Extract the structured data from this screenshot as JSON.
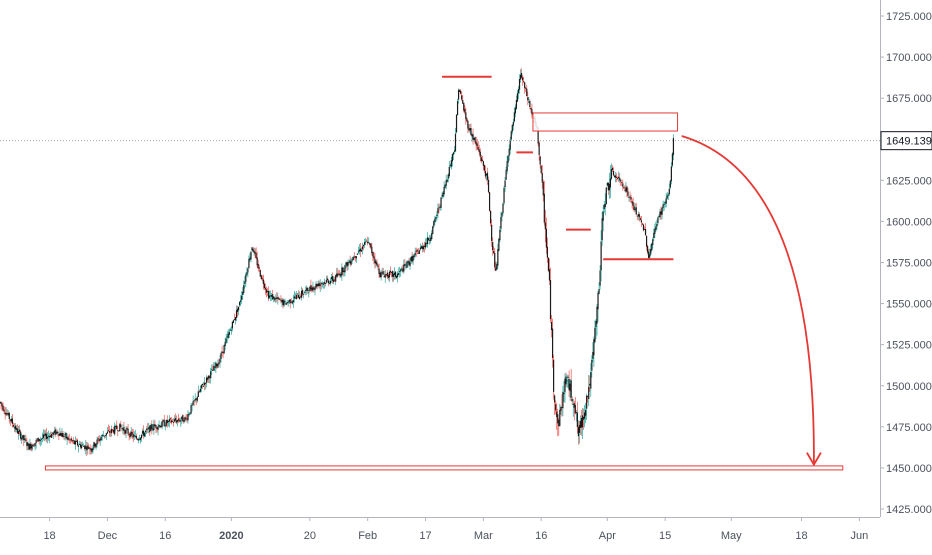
{
  "chart_data": {
    "type": "candlestick",
    "title": "",
    "xlabel": "",
    "ylabel": "",
    "ylim": [
      1419,
      1731
    ],
    "y_ticks": [
      "1425.000",
      "1450.000",
      "1475.000",
      "1500.000",
      "1525.000",
      "1550.000",
      "1575.000",
      "1600.000",
      "1625.000",
      "1650.000",
      "1675.000",
      "1700.000",
      "1725.000"
    ],
    "y_tick_values": [
      1425,
      1450,
      1475,
      1500,
      1525,
      1550,
      1575,
      1600,
      1625,
      1650,
      1675,
      1700,
      1725
    ],
    "x_ticks": [
      {
        "label": "18",
        "date": "2019-11-18",
        "bold": false
      },
      {
        "label": "Dec",
        "date": "2019-12-02",
        "bold": false
      },
      {
        "label": "16",
        "date": "2019-12-16",
        "bold": false
      },
      {
        "label": "2020",
        "date": "2020-01-01",
        "bold": true
      },
      {
        "label": "20",
        "date": "2020-01-20",
        "bold": false
      },
      {
        "label": "Feb",
        "date": "2020-02-03",
        "bold": false
      },
      {
        "label": "17",
        "date": "2020-02-17",
        "bold": false
      },
      {
        "label": "Mar",
        "date": "2020-03-02",
        "bold": false
      },
      {
        "label": "16",
        "date": "2020-03-16",
        "bold": false
      },
      {
        "label": "Apr",
        "date": "2020-04-01",
        "bold": false
      },
      {
        "label": "15",
        "date": "2020-04-15",
        "bold": false
      },
      {
        "label": "May",
        "date": "2020-05-01",
        "bold": false
      },
      {
        "label": "18",
        "date": "2020-05-18",
        "bold": false
      },
      {
        "label": "Jun",
        "date": "2020-06-01",
        "bold": false
      }
    ],
    "x_range": [
      "2019-11-06",
      "2020-06-06"
    ],
    "last_price": 1649.139,
    "last_price_label": "1649.139",
    "colors": {
      "up": "#26a69a",
      "down": "#ef5350",
      "candle": "#1b1b1b",
      "annotation": "#e53935",
      "axis_text": "#4c525e",
      "axis_line": "#b2b5be",
      "price_line": "#9598a1"
    },
    "price_keypoints": [
      [
        "2019-11-06",
        1490
      ],
      [
        "2019-11-10",
        1473
      ],
      [
        "2019-11-13",
        1463
      ],
      [
        "2019-11-16",
        1468
      ],
      [
        "2019-11-20",
        1472
      ],
      [
        "2019-11-24",
        1465
      ],
      [
        "2019-11-28",
        1462
      ],
      [
        "2019-12-01",
        1470
      ],
      [
        "2019-12-05",
        1475
      ],
      [
        "2019-12-09",
        1468
      ],
      [
        "2019-12-13",
        1475
      ],
      [
        "2019-12-17",
        1478
      ],
      [
        "2019-12-21",
        1480
      ],
      [
        "2019-12-25",
        1500
      ],
      [
        "2019-12-29",
        1515
      ],
      [
        "2020-01-03",
        1550
      ],
      [
        "2020-01-06",
        1585
      ],
      [
        "2020-01-08",
        1568
      ],
      [
        "2020-01-10",
        1555
      ],
      [
        "2020-01-14",
        1550
      ],
      [
        "2020-01-18",
        1556
      ],
      [
        "2020-01-22",
        1562
      ],
      [
        "2020-01-26",
        1565
      ],
      [
        "2020-01-30",
        1577
      ],
      [
        "2020-02-03",
        1588
      ],
      [
        "2020-02-06",
        1568
      ],
      [
        "2020-02-10",
        1567
      ],
      [
        "2020-02-14",
        1578
      ],
      [
        "2020-02-18",
        1590
      ],
      [
        "2020-02-21",
        1615
      ],
      [
        "2020-02-24",
        1645
      ],
      [
        "2020-02-25",
        1682
      ],
      [
        "2020-02-27",
        1660
      ],
      [
        "2020-03-01",
        1642
      ],
      [
        "2020-03-03",
        1625
      ],
      [
        "2020-03-04",
        1590
      ],
      [
        "2020-03-05",
        1568
      ],
      [
        "2020-03-06",
        1595
      ],
      [
        "2020-03-08",
        1642
      ],
      [
        "2020-03-10",
        1672
      ],
      [
        "2020-03-11",
        1690
      ],
      [
        "2020-03-13",
        1672
      ],
      [
        "2020-03-15",
        1655
      ],
      [
        "2020-03-16",
        1628
      ],
      [
        "2020-03-17",
        1595
      ],
      [
        "2020-03-18",
        1560
      ],
      [
        "2020-03-19",
        1500
      ],
      [
        "2020-03-20",
        1475
      ],
      [
        "2020-03-22",
        1505
      ],
      [
        "2020-03-24",
        1490
      ],
      [
        "2020-03-25",
        1470
      ],
      [
        "2020-03-26",
        1480
      ],
      [
        "2020-03-28",
        1505
      ],
      [
        "2020-03-30",
        1560
      ],
      [
        "2020-03-31",
        1610
      ],
      [
        "2020-04-02",
        1630
      ],
      [
        "2020-04-05",
        1622
      ],
      [
        "2020-04-08",
        1605
      ],
      [
        "2020-04-10",
        1595
      ],
      [
        "2020-04-11",
        1578
      ],
      [
        "2020-04-13",
        1600
      ],
      [
        "2020-04-16",
        1618
      ],
      [
        "2020-04-17",
        1649.139
      ]
    ],
    "annotations": {
      "hlines": [
        {
          "date_start": "2020-02-21",
          "date_end": "2020-03-04",
          "price": 1688
        },
        {
          "date_start": "2020-03-10",
          "date_end": "2020-03-14",
          "price": 1642
        },
        {
          "date_start": "2020-03-22",
          "date_end": "2020-03-28",
          "price": 1595
        },
        {
          "date_start": "2020-03-31",
          "date_end": "2020-04-17",
          "price": 1577
        }
      ],
      "support_line": {
        "date_start": "2019-11-17",
        "date_end": "2020-05-28",
        "price": 1450
      },
      "resistance_box": {
        "date_start": "2020-03-14",
        "date_end": "2020-04-18",
        "price_low": 1655,
        "price_high": 1666
      },
      "forecast_arrow": {
        "date_start": "2020-04-19",
        "price_start": 1652,
        "date_end": "2020-05-21",
        "price_end": 1452
      }
    }
  }
}
